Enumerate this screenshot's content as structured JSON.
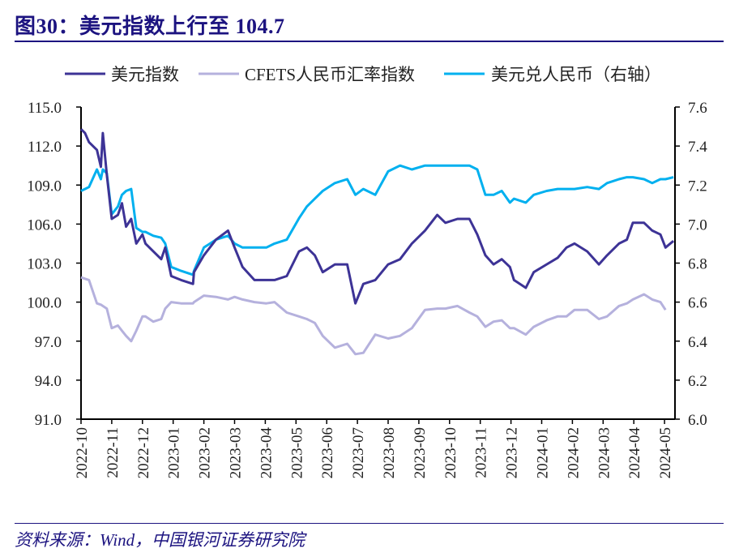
{
  "title": "图30：美元指数上行至 104.7",
  "source": "资料来源：Wind，中国银河证券研究院",
  "chart_data": {
    "type": "line",
    "title": "图30：美元指数上行至 104.7",
    "legend_position": "top",
    "grid": false,
    "y_left": {
      "ylim": [
        91,
        115
      ],
      "ticks": [
        "115.0",
        "112.0",
        "109.0",
        "106.0",
        "103.0",
        "100.0",
        "97.0",
        "94.0",
        "91.0"
      ]
    },
    "y_right": {
      "ylim": [
        6.0,
        7.6
      ],
      "ticks": [
        "7.6",
        "7.4",
        "7.2",
        "7.0",
        "6.8",
        "6.6",
        "6.4",
        "6.2",
        "6.0"
      ]
    },
    "x_ticks": [
      "2022-10",
      "2022-11",
      "2022-12",
      "2023-01",
      "2023-02",
      "2023-03",
      "2023-04",
      "2023-05",
      "2023-06",
      "2023-07",
      "2023-08",
      "2023-09",
      "2023-10",
      "2023-11",
      "2023-12",
      "2024-01",
      "2024-02",
      "2024-03",
      "2024-04",
      "2024-05"
    ],
    "x": [
      "2022-10-01",
      "2022-10-05",
      "2022-10-09",
      "2022-10-17",
      "2022-10-21",
      "2022-10-23",
      "2022-10-27",
      "2022-11-01",
      "2022-11-07",
      "2022-11-11",
      "2022-11-15",
      "2022-11-20",
      "2022-11-25",
      "2022-12-01",
      "2022-12-04",
      "2022-12-12",
      "2022-12-20",
      "2022-12-24",
      "2022-12-30",
      "2023-01-09",
      "2023-01-21",
      "2023-01-22",
      "2023-02-01",
      "2023-02-12",
      "2023-02-23",
      "2023-03-01",
      "2023-03-09",
      "2023-03-21",
      "2023-04-02",
      "2023-04-10",
      "2023-04-22",
      "2023-05-04",
      "2023-05-12",
      "2023-05-20",
      "2023-05-28",
      "2023-06-09",
      "2023-06-21",
      "2023-06-29",
      "2023-07-07",
      "2023-07-19",
      "2023-08-01",
      "2023-08-13",
      "2023-08-25",
      "2023-09-07",
      "2023-09-19",
      "2023-09-27",
      "2023-10-09",
      "2023-10-21",
      "2023-10-29",
      "2023-11-06",
      "2023-11-14",
      "2023-11-22",
      "2023-11-30",
      "2023-12-04",
      "2023-12-16",
      "2023-12-24",
      "2024-01-06",
      "2024-01-17",
      "2024-01-26",
      "2024-02-03",
      "2024-02-15",
      "2024-02-26",
      "2024-03-05",
      "2024-03-17",
      "2024-03-25",
      "2024-03-31",
      "2024-04-11",
      "2024-04-19",
      "2024-04-27",
      "2024-05-02",
      "2024-05-10"
    ],
    "series": [
      {
        "name": "美元指数",
        "axis": "left",
        "color": "#3d3396",
        "values": [
          113.3,
          113.0,
          112.3,
          111.7,
          110.4,
          113.0,
          109.8,
          106.4,
          106.7,
          107.6,
          105.8,
          106.4,
          104.5,
          105.2,
          104.5,
          103.9,
          103.3,
          104.2,
          102.0,
          101.7,
          101.4,
          102.3,
          103.6,
          104.8,
          105.5,
          104.2,
          102.7,
          101.7,
          101.7,
          101.7,
          102.0,
          103.9,
          104.2,
          103.6,
          102.3,
          102.9,
          102.9,
          99.9,
          101.4,
          101.7,
          102.9,
          103.3,
          104.5,
          105.5,
          106.7,
          106.1,
          106.4,
          106.4,
          105.2,
          103.6,
          102.9,
          103.3,
          102.7,
          101.7,
          101.1,
          102.3,
          102.9,
          103.4,
          104.2,
          104.5,
          103.9,
          102.9,
          103.6,
          104.5,
          104.8,
          106.1,
          106.1,
          105.5,
          105.2,
          104.2,
          104.7
        ]
      },
      {
        "name": "CFETS人民币汇率指数",
        "axis": "left",
        "color": "#b5b1dd",
        "values": [
          101.9,
          101.8,
          101.7,
          99.9,
          99.8,
          99.7,
          99.5,
          98.0,
          98.2,
          97.8,
          97.4,
          97.0,
          97.8,
          98.9,
          98.9,
          98.5,
          98.7,
          99.5,
          100.0,
          99.9,
          99.9,
          100.0,
          100.5,
          100.4,
          100.2,
          100.4,
          100.2,
          100.0,
          99.9,
          100.0,
          99.2,
          98.9,
          98.7,
          98.4,
          97.4,
          96.5,
          96.8,
          96.0,
          96.1,
          97.5,
          97.2,
          97.4,
          98.0,
          99.4,
          99.5,
          99.5,
          99.7,
          99.2,
          98.9,
          98.1,
          98.5,
          98.6,
          98.0,
          98.0,
          97.5,
          98.1,
          98.6,
          98.9,
          98.9,
          99.4,
          99.4,
          98.7,
          98.9,
          99.7,
          99.9,
          100.2,
          100.6,
          100.2,
          100.0,
          99.4,
          null
        ]
      },
      {
        "name": "美元兑人民币（右轴）",
        "axis": "right",
        "color": "#00b0ef",
        "values": [
          7.17,
          7.18,
          7.19,
          7.28,
          7.23,
          7.28,
          7.26,
          7.05,
          7.09,
          7.15,
          7.17,
          7.18,
          6.98,
          6.96,
          6.96,
          6.94,
          6.93,
          6.9,
          6.78,
          6.76,
          6.74,
          6.76,
          6.88,
          6.92,
          6.94,
          6.9,
          6.88,
          6.88,
          6.88,
          6.9,
          6.92,
          7.03,
          7.09,
          7.13,
          7.17,
          7.21,
          7.23,
          7.15,
          7.18,
          7.15,
          7.27,
          7.3,
          7.28,
          7.3,
          7.3,
          7.3,
          7.3,
          7.3,
          7.28,
          7.15,
          7.15,
          7.17,
          7.11,
          7.13,
          7.11,
          7.15,
          7.17,
          7.18,
          7.18,
          7.18,
          7.19,
          7.18,
          7.21,
          7.23,
          7.24,
          7.24,
          7.23,
          7.21,
          7.23,
          7.23,
          7.24
        ]
      }
    ]
  }
}
